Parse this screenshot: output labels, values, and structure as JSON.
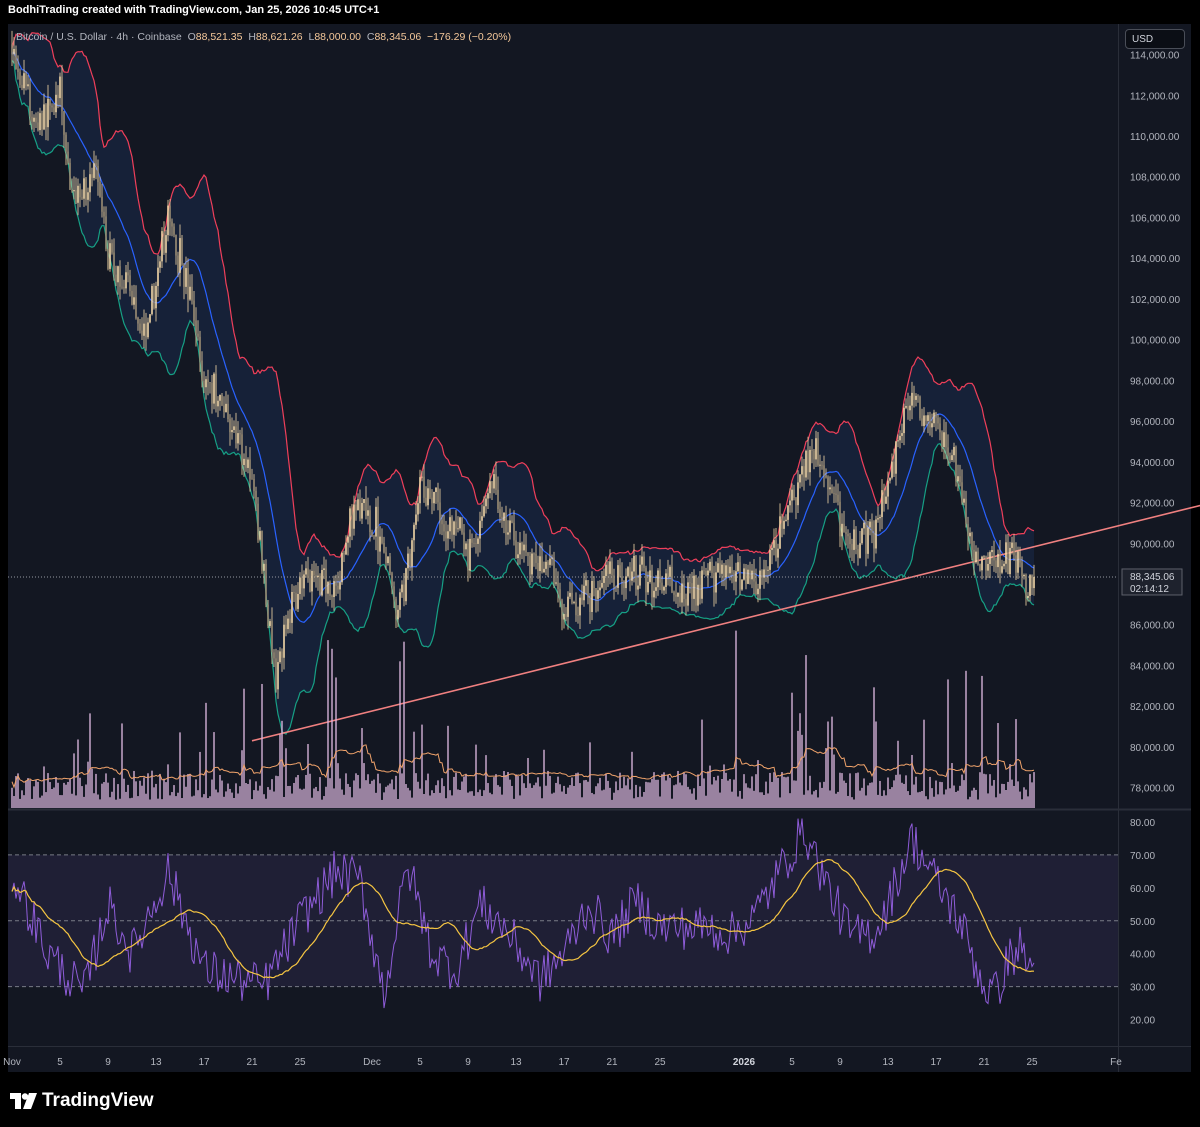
{
  "header": {
    "caption": "BodhiTrading created with TradingView.com, Jan 25, 2026 10:45 UTC+1"
  },
  "legend": {
    "symbol": "Bitcoin / U.S. Dollar · 4h · Coinbase",
    "o_label": "O",
    "o_value": "88,521.35",
    "h_label": "H",
    "h_value": "88,621.26",
    "l_label": "L",
    "l_value": "88,000.00",
    "c_label": "C",
    "c_value": "88,345.06",
    "change": "−176.29 (−0.20%)"
  },
  "currency": "USD",
  "price_label": {
    "value": "88,345.06",
    "countdown": "02:14:12"
  },
  "brand": {
    "name": "TradingView"
  },
  "colors": {
    "background": "#131722",
    "candle": "#f5d9a8",
    "bb_upper": "#ef3f5a",
    "bb_basis": "#2962ff",
    "bb_lower": "#16a085",
    "bb_fill": "#1a2a4a",
    "trendline": "#f08080",
    "volume": "#d8b4dc",
    "volume_ma": "#f0a36b",
    "rsi": "#8e5cd8",
    "rsi_ma": "#f5c542",
    "rsi_band": "#7e57c2"
  },
  "chart_data": [
    {
      "type": "candlestick",
      "name": "price",
      "ylim": [
        77000,
        115500
      ],
      "y_ticks": [
        "78,000.00",
        "80,000.00",
        "82,000.00",
        "84,000.00",
        "86,000.00",
        "88,000.00",
        "90,000.00",
        "92,000.00",
        "94,000.00",
        "96,000.00",
        "98,000.00",
        "100,000.00",
        "102,000.00",
        "104,000.00",
        "106,000.00",
        "108,000.00",
        "110,000.00",
        "112,000.00",
        "114,000.00"
      ],
      "y_tick_values": [
        78000,
        80000,
        82000,
        84000,
        86000,
        88000,
        90000,
        92000,
        94000,
        96000,
        98000,
        100000,
        102000,
        104000,
        106000,
        108000,
        110000,
        112000,
        114000
      ],
      "x_ticks": [
        "Nov",
        "5",
        "9",
        "13",
        "17",
        "21",
        "25",
        "Dec",
        "5",
        "9",
        "13",
        "17",
        "21",
        "25",
        "2026",
        "5",
        "9",
        "13",
        "17",
        "21",
        "25",
        "Fe"
      ],
      "x_tick_days": [
        0,
        4,
        8,
        12,
        16,
        20,
        24,
        30,
        34,
        38,
        42,
        46,
        50,
        54,
        61,
        65,
        69,
        73,
        77,
        81,
        85,
        92
      ],
      "bars_per_day": 6,
      "bar_count": 512,
      "anchors": [
        [
          0,
          114500
        ],
        [
          2,
          110500
        ],
        [
          4,
          112000
        ],
        [
          5,
          107000
        ],
        [
          7,
          108000
        ],
        [
          8,
          104000
        ],
        [
          10,
          102000
        ],
        [
          11,
          100500
        ],
        [
          12,
          102500
        ],
        [
          13,
          106000
        ],
        [
          14,
          104000
        ],
        [
          15,
          101500
        ],
        [
          16,
          98000
        ],
        [
          18,
          96500
        ],
        [
          20,
          93000
        ],
        [
          21,
          88500
        ],
        [
          22,
          83000
        ],
        [
          23,
          86500
        ],
        [
          24,
          88500
        ],
        [
          26,
          88500
        ],
        [
          27,
          87500
        ],
        [
          28,
          90500
        ],
        [
          29,
          92000
        ],
        [
          30,
          91000
        ],
        [
          31,
          90000
        ],
        [
          32,
          86500
        ],
        [
          33,
          89000
        ],
        [
          34,
          93000
        ],
        [
          35,
          92500
        ],
        [
          36,
          90500
        ],
        [
          37,
          91000
        ],
        [
          38,
          89500
        ],
        [
          39,
          90500
        ],
        [
          40,
          93500
        ],
        [
          41,
          91000
        ],
        [
          43,
          89500
        ],
        [
          45,
          88500
        ],
        [
          46,
          86500
        ],
        [
          48,
          87500
        ],
        [
          50,
          88500
        ],
        [
          52,
          88500
        ],
        [
          54,
          88000
        ],
        [
          56,
          87500
        ],
        [
          58,
          88500
        ],
        [
          60,
          88000
        ],
        [
          61,
          88000
        ],
        [
          62,
          87500
        ],
        [
          64,
          90500
        ],
        [
          66,
          93500
        ],
        [
          67,
          94500
        ],
        [
          68,
          93000
        ],
        [
          69,
          91000
        ],
        [
          70,
          90000
        ],
        [
          71,
          90500
        ],
        [
          72,
          90500
        ],
        [
          73,
          93000
        ],
        [
          74,
          95500
        ],
        [
          75,
          97500
        ],
        [
          76,
          96000
        ],
        [
          77,
          95500
        ],
        [
          78,
          95000
        ],
        [
          79,
          92500
        ],
        [
          80,
          89500
        ],
        [
          81,
          89000
        ],
        [
          82,
          89000
        ],
        [
          83,
          89500
        ],
        [
          84,
          88500
        ],
        [
          85,
          88300
        ]
      ],
      "bollinger_period": 20,
      "bollinger_mult": 2,
      "last_price": 88345.06,
      "trendline": [
        [
          20,
          80300
        ],
        [
          100,
          92000
        ]
      ]
    },
    {
      "type": "bar",
      "name": "volume",
      "has_moving_average": true
    },
    {
      "type": "line",
      "name": "rsi",
      "ylim": [
        12,
        83
      ],
      "y_ticks": [
        "20.00",
        "30.00",
        "40.00",
        "50.00",
        "60.00",
        "70.00",
        "80.00"
      ],
      "y_tick_values": [
        20,
        30,
        40,
        50,
        60,
        70,
        80
      ],
      "band": [
        30,
        70
      ],
      "midline": 50,
      "anchors": [
        [
          0,
          65
        ],
        [
          3,
          40
        ],
        [
          6,
          28
        ],
        [
          8,
          55
        ],
        [
          10,
          40
        ],
        [
          13,
          65
        ],
        [
          16,
          35
        ],
        [
          19,
          32
        ],
        [
          21,
          30
        ],
        [
          24,
          50
        ],
        [
          27,
          65
        ],
        [
          29,
          62
        ],
        [
          31,
          28
        ],
        [
          33,
          67
        ],
        [
          35,
          40
        ],
        [
          37,
          35
        ],
        [
          39,
          55
        ],
        [
          41,
          48
        ],
        [
          44,
          32
        ],
        [
          46,
          40
        ],
        [
          48,
          55
        ],
        [
          50,
          45
        ],
        [
          52,
          56
        ],
        [
          54,
          48
        ],
        [
          56,
          48
        ],
        [
          58,
          48
        ],
        [
          60,
          46
        ],
        [
          62,
          52
        ],
        [
          64,
          65
        ],
        [
          66,
          78
        ],
        [
          68,
          60
        ],
        [
          70,
          45
        ],
        [
          72,
          47
        ],
        [
          73,
          55
        ],
        [
          75,
          75
        ],
        [
          77,
          62
        ],
        [
          79,
          50
        ],
        [
          81,
          30
        ],
        [
          82,
          28
        ],
        [
          83,
          38
        ],
        [
          84,
          42
        ],
        [
          85,
          35
        ]
      ],
      "ma_period": 14
    }
  ]
}
